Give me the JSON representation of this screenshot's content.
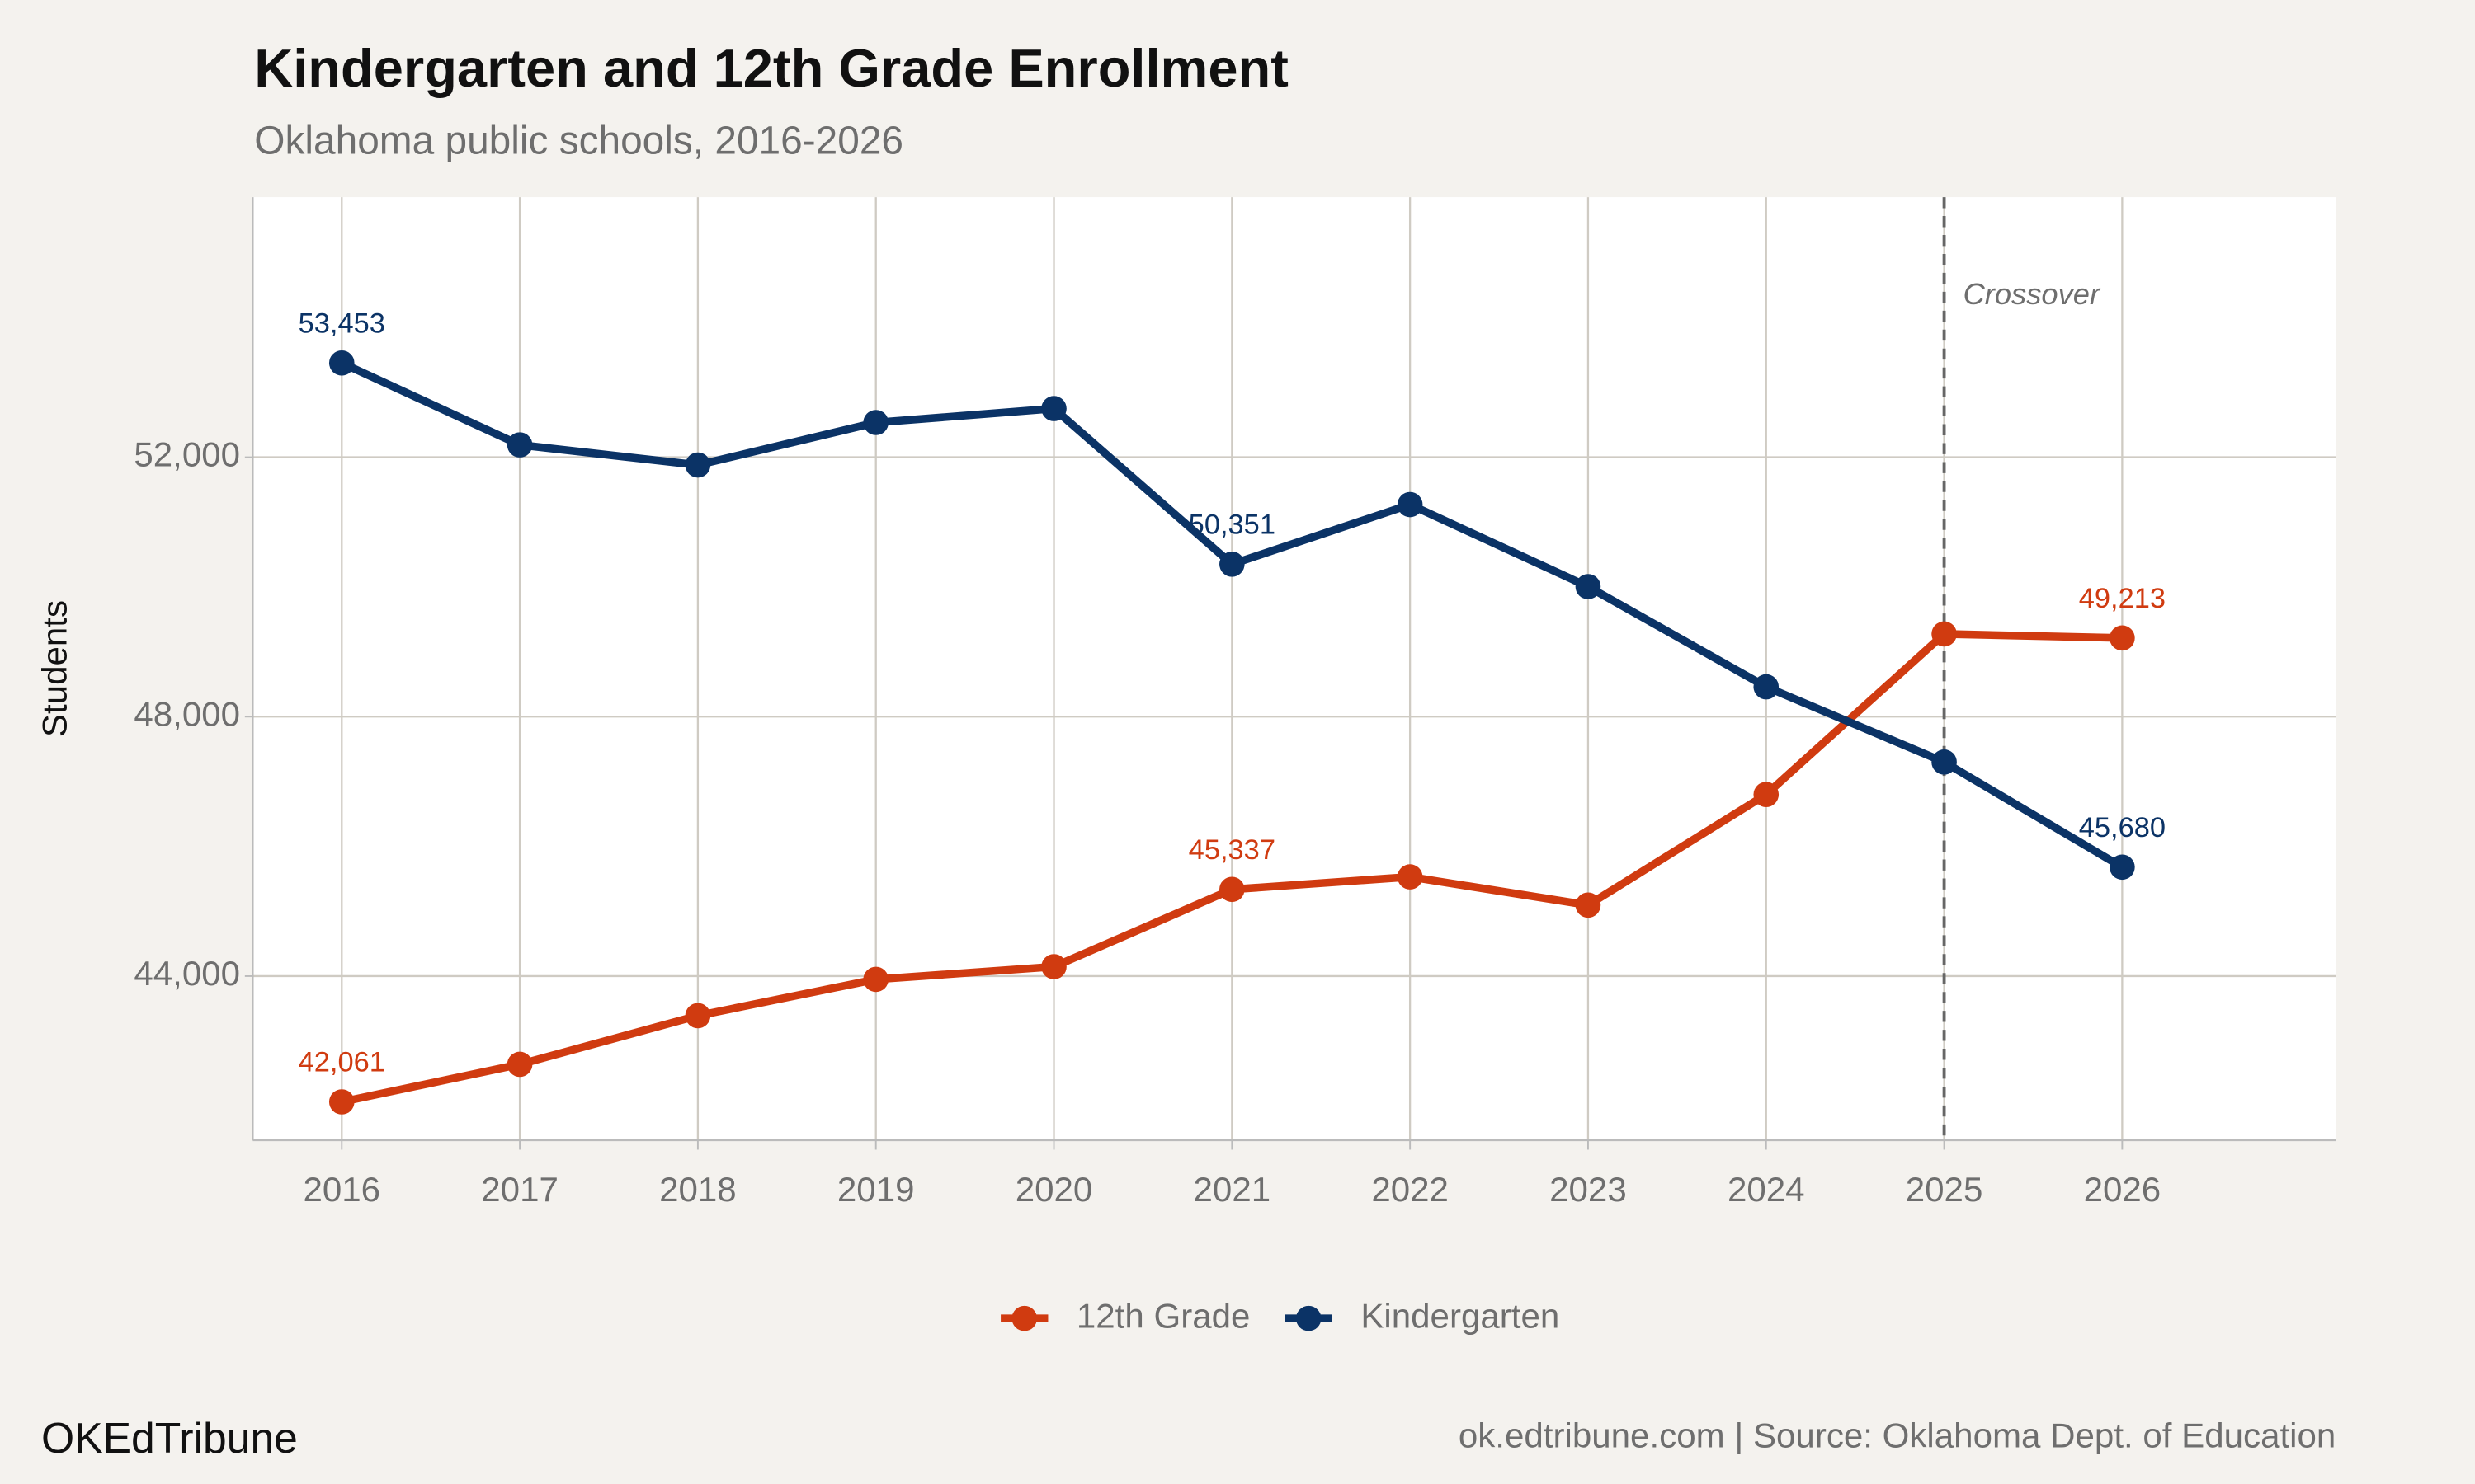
{
  "chart_data": {
    "type": "line",
    "title": "Kindergarten and 12th Grade Enrollment",
    "subtitle": "Oklahoma public schools, 2016-2026",
    "y_label": "Students",
    "x": [
      2016,
      2017,
      2018,
      2019,
      2020,
      2021,
      2022,
      2023,
      2024,
      2025,
      2026
    ],
    "series": [
      {
        "name": "12th Grade",
        "color": "#d03b10",
        "values": [
          42061,
          42640,
          43390,
          43950,
          44145,
          45337,
          45530,
          45095,
          46800,
          49275,
          49213
        ],
        "value_labels": [
          "42,061",
          null,
          null,
          null,
          null,
          "45,337",
          null,
          null,
          null,
          null,
          "49,213"
        ]
      },
      {
        "name": "Kindergarten",
        "color": "#0b3366",
        "values": [
          53453,
          52190,
          51880,
          52535,
          52750,
          50351,
          51270,
          50005,
          48460,
          47300,
          45680
        ],
        "value_labels": [
          "53,453",
          null,
          null,
          null,
          null,
          "50,351",
          null,
          null,
          null,
          null,
          "45,680"
        ]
      }
    ],
    "xlim": [
      2015.5,
      2027.2
    ],
    "xticks": [
      2016,
      2017,
      2018,
      2019,
      2020,
      2021,
      2022,
      2023,
      2024,
      2025,
      2026
    ],
    "ylim": [
      41470,
      56010
    ],
    "yticks": [
      {
        "value": 44000,
        "label": "44,000"
      },
      {
        "value": 48000,
        "label": "48,000"
      },
      {
        "value": 52000,
        "label": "52,000"
      }
    ],
    "grid": true,
    "legend": "bottom",
    "annotation": {
      "text": "Crossover",
      "x": 2025
    },
    "brand": "OKEdTribune",
    "source": "ok.edtribune.com | Source: Oklahoma Dept. of Education"
  }
}
